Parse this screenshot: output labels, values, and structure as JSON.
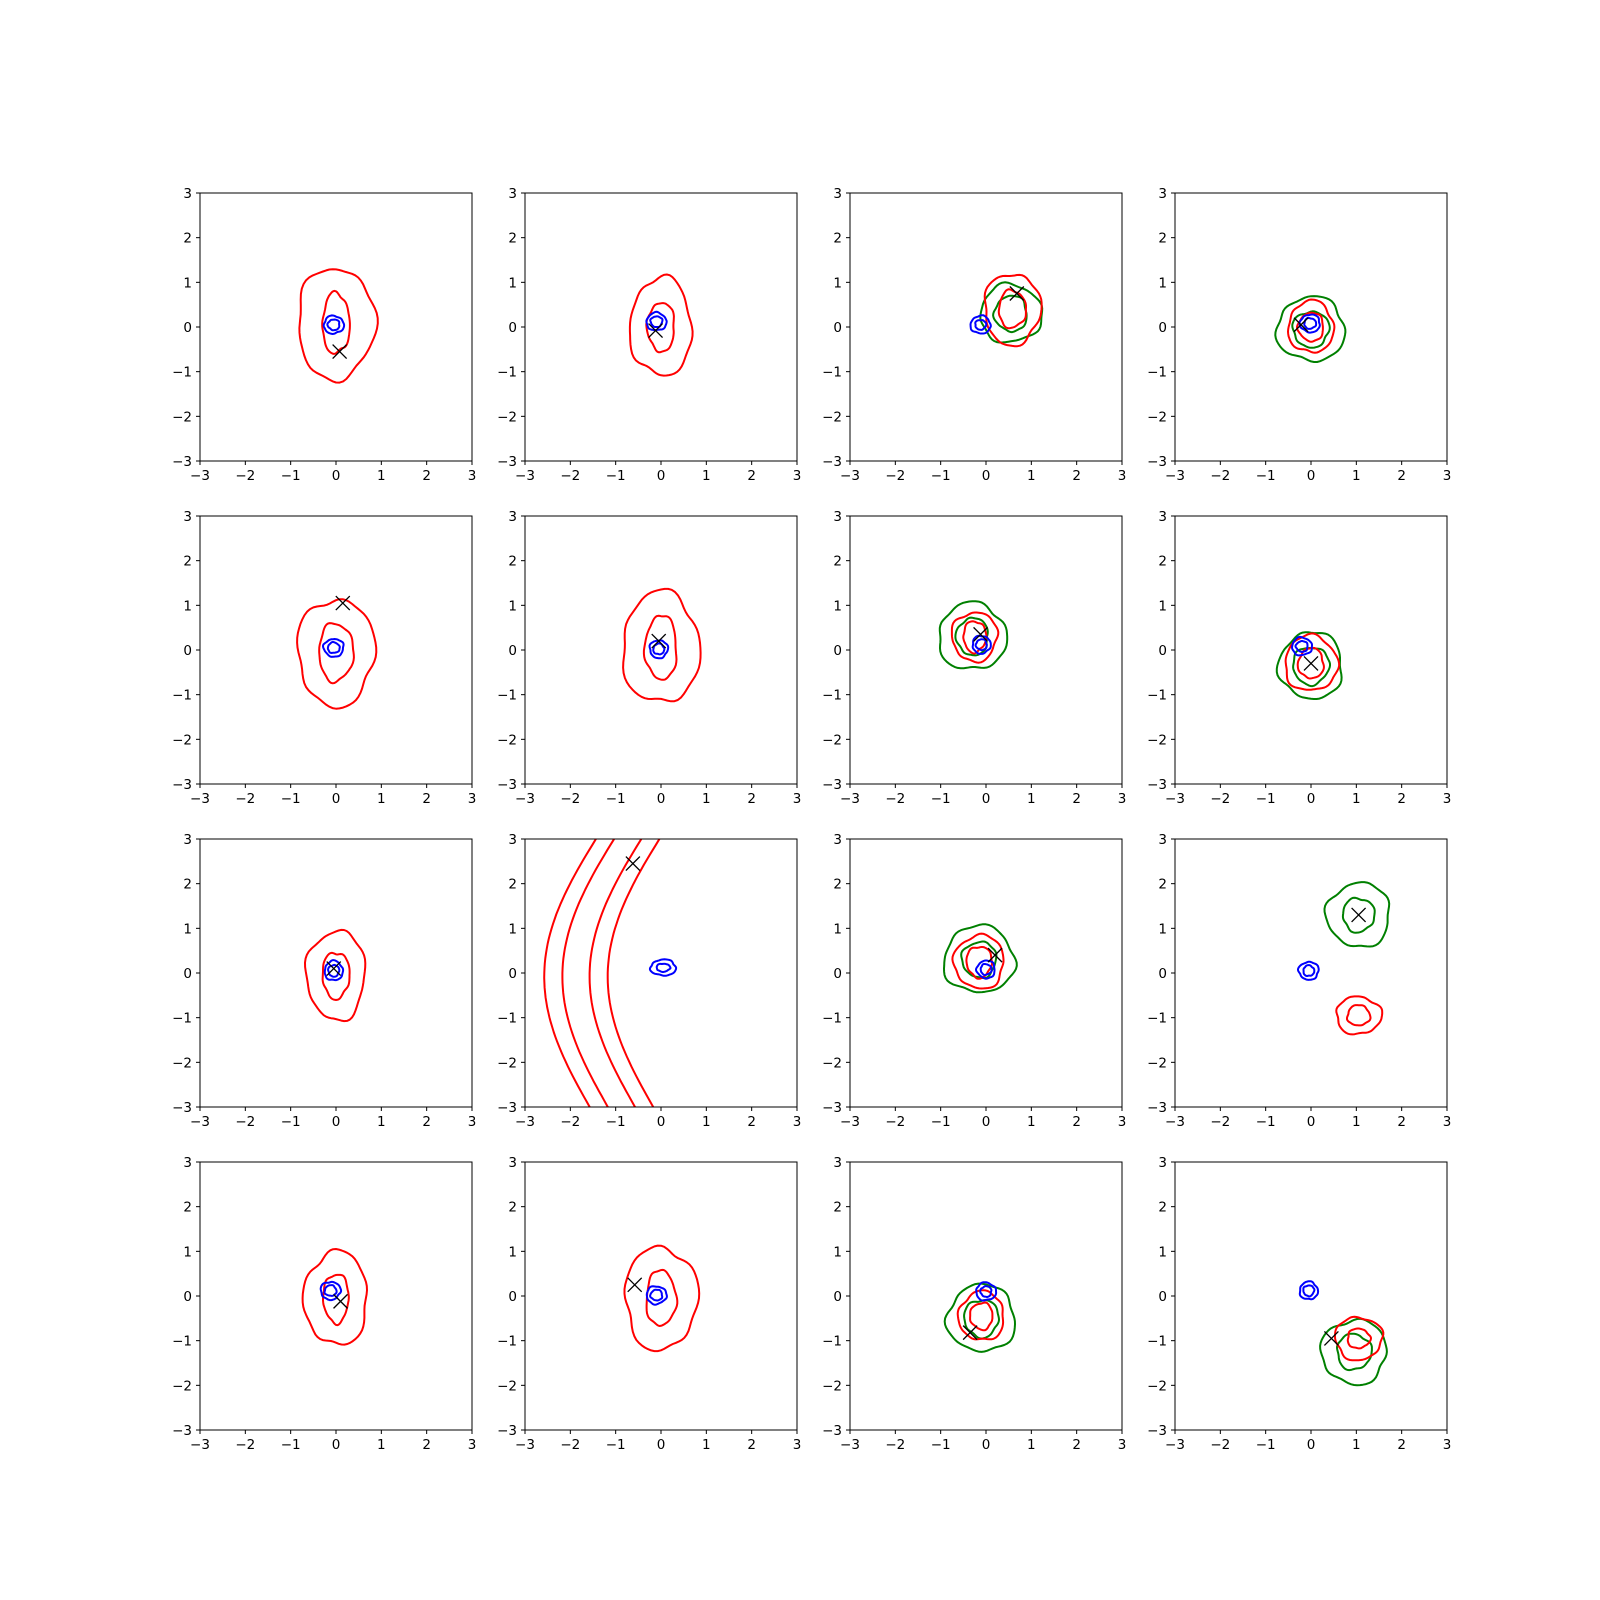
{
  "chart_data": {
    "type": "contour",
    "grid": {
      "rows": 4,
      "cols": 4
    },
    "xlim": [
      -3,
      3
    ],
    "ylim": [
      -3,
      3
    ],
    "ticks": [
      -3,
      -2,
      -1,
      0,
      1,
      2,
      3
    ],
    "tick_labels": [
      "−3",
      "−2",
      "−1",
      "0",
      "1",
      "2",
      "3"
    ],
    "colors": {
      "blue": "#0000ff",
      "red": "#ff0000",
      "green": "#008000",
      "marker": "#000000"
    },
    "panels": [
      {
        "blue": {
          "c": [
            -0.05,
            0.05
          ],
          "r": [
            [
              0.22,
              0.2
            ],
            [
              0.13,
              0.12
            ]
          ]
        },
        "red": {
          "c": [
            0.0,
            0.08
          ],
          "r": [
            [
              0.85,
              1.25
            ],
            [
              0.3,
              0.68
            ]
          ]
        },
        "green": null,
        "marker": [
          0.08,
          -0.55
        ]
      },
      {
        "blue": {
          "c": [
            -0.1,
            0.12
          ],
          "r": [
            [
              0.22,
              0.2
            ],
            [
              0.13,
              0.12
            ]
          ]
        },
        "red": {
          "c": [
            0.0,
            0.0
          ],
          "r": [
            [
              0.68,
              1.1
            ],
            [
              0.3,
              0.55
            ]
          ]
        },
        "green": null,
        "marker": [
          -0.12,
          -0.08
        ]
      },
      {
        "blue": {
          "c": [
            -0.12,
            0.05
          ],
          "r": [
            [
              0.22,
              0.2
            ],
            [
              0.12,
              0.11
            ]
          ]
        },
        "red": {
          "c": [
            0.58,
            0.4
          ],
          "r": [
            [
              0.62,
              0.8
            ],
            [
              0.3,
              0.42
            ]
          ]
        },
        "green": {
          "c": [
            0.55,
            0.3
          ],
          "r": [
            [
              0.68,
              0.65
            ],
            [
              0.36,
              0.4
            ]
          ]
        },
        "marker": [
          0.68,
          0.75
        ]
      },
      {
        "blue": {
          "c": [
            -0.02,
            0.08
          ],
          "r": [
            [
              0.22,
              0.2
            ],
            [
              0.13,
              0.12
            ]
          ]
        },
        "red": {
          "c": [
            0.0,
            0.0
          ],
          "r": [
            [
              0.5,
              0.58
            ],
            [
              0.28,
              0.32
            ]
          ]
        },
        "green": {
          "c": [
            0.0,
            -0.05
          ],
          "r": [
            [
              0.75,
              0.72
            ],
            [
              0.4,
              0.4
            ]
          ]
        },
        "marker": [
          -0.22,
          0.05
        ]
      },
      {
        "blue": {
          "c": [
            -0.05,
            0.05
          ],
          "r": [
            [
              0.22,
              0.2
            ],
            [
              0.13,
              0.12
            ]
          ]
        },
        "red": {
          "c": [
            0.0,
            -0.05
          ],
          "r": [
            [
              0.85,
              1.2
            ],
            [
              0.38,
              0.65
            ]
          ]
        },
        "green": null,
        "marker": [
          0.15,
          1.05
        ]
      },
      {
        "blue": {
          "c": [
            -0.05,
            0.02
          ],
          "r": [
            [
              0.2,
              0.2
            ],
            [
              0.12,
              0.12
            ]
          ]
        },
        "red": {
          "c": [
            0.0,
            0.05
          ],
          "r": [
            [
              0.85,
              1.25
            ],
            [
              0.35,
              0.72
            ]
          ]
        },
        "green": null,
        "marker": [
          -0.05,
          0.2
        ]
      },
      {
        "blue": {
          "c": [
            -0.1,
            0.12
          ],
          "r": [
            [
              0.2,
              0.2
            ],
            [
              0.12,
              0.12
            ]
          ]
        },
        "red": {
          "c": [
            -0.25,
            0.3
          ],
          "r": [
            [
              0.5,
              0.55
            ],
            [
              0.25,
              0.35
            ]
          ]
        },
        "green": {
          "c": [
            -0.3,
            0.3
          ],
          "r": [
            [
              0.75,
              0.75
            ],
            [
              0.35,
              0.42
            ]
          ]
        },
        "marker": [
          -0.12,
          0.35
        ]
      },
      {
        "blue": {
          "c": [
            -0.2,
            0.08
          ],
          "r": [
            [
              0.22,
              0.2
            ],
            [
              0.13,
              0.12
            ]
          ]
        },
        "red": {
          "c": [
            0.0,
            -0.3
          ],
          "r": [
            [
              0.58,
              0.62
            ],
            [
              0.28,
              0.34
            ]
          ]
        },
        "green": {
          "c": [
            0.0,
            -0.35
          ],
          "r": [
            [
              0.7,
              0.75
            ],
            [
              0.4,
              0.42
            ]
          ]
        },
        "marker": [
          0.0,
          -0.3
        ]
      },
      {
        "blue": {
          "c": [
            -0.05,
            0.05
          ],
          "r": [
            [
              0.2,
              0.22
            ],
            [
              0.12,
              0.13
            ]
          ]
        },
        "red": {
          "c": [
            0.0,
            -0.05
          ],
          "r": [
            [
              0.65,
              1.0
            ],
            [
              0.3,
              0.52
            ]
          ]
        },
        "green": null,
        "marker": [
          -0.05,
          0.1
        ]
      },
      {
        "blue": {
          "c": [
            0.05,
            0.12
          ],
          "r": [
            [
              0.28,
              0.18
            ],
            [
              0.15,
              0.09
            ]
          ]
        },
        "red": null,
        "green": null,
        "marker": [
          -0.62,
          2.45
        ]
      },
      {
        "blue": {
          "c": [
            0.0,
            0.08
          ],
          "r": [
            [
              0.2,
              0.2
            ],
            [
              0.12,
              0.12
            ]
          ]
        },
        "red": {
          "c": [
            -0.15,
            0.25
          ],
          "r": [
            [
              0.55,
              0.6
            ],
            [
              0.28,
              0.35
            ]
          ]
        },
        "green": {
          "c": [
            -0.15,
            0.3
          ],
          "r": [
            [
              0.78,
              0.75
            ],
            [
              0.38,
              0.4
            ]
          ]
        },
        "marker": [
          0.2,
          0.4
        ]
      },
      {
        "blue": {
          "c": [
            -0.05,
            0.05
          ],
          "r": [
            [
              0.22,
              0.2
            ],
            [
              0.12,
              0.12
            ]
          ]
        },
        "red": {
          "c": [
            1.05,
            -0.95
          ],
          "r": [
            [
              0.5,
              0.42
            ],
            [
              0.25,
              0.23
            ]
          ]
        },
        "green": {
          "c": [
            1.05,
            1.3
          ],
          "r": [
            [
              0.7,
              0.72
            ],
            [
              0.35,
              0.38
            ]
          ]
        },
        "marker": [
          1.05,
          1.3
        ]
      },
      {
        "blue": {
          "c": [
            -0.12,
            0.12
          ],
          "r": [
            [
              0.22,
              0.2
            ],
            [
              0.13,
              0.12
            ]
          ]
        },
        "red": {
          "c": [
            0.0,
            -0.05
          ],
          "r": [
            [
              0.7,
              1.05
            ],
            [
              0.28,
              0.55
            ]
          ]
        },
        "green": null,
        "marker": [
          0.1,
          -0.12
        ]
      },
      {
        "blue": {
          "c": [
            -0.1,
            0.02
          ],
          "r": [
            [
              0.22,
              0.2
            ],
            [
              0.13,
              0.12
            ]
          ]
        },
        "red": {
          "c": [
            0.0,
            -0.05
          ],
          "r": [
            [
              0.8,
              1.15
            ],
            [
              0.33,
              0.62
            ]
          ]
        },
        "green": null,
        "marker": [
          -0.58,
          0.25
        ]
      },
      {
        "blue": {
          "c": [
            0.0,
            0.1
          ],
          "r": [
            [
              0.22,
              0.2
            ],
            [
              0.12,
              0.12
            ]
          ]
        },
        "red": {
          "c": [
            -0.1,
            -0.45
          ],
          "r": [
            [
              0.5,
              0.55
            ],
            [
              0.25,
              0.3
            ]
          ]
        },
        "green": {
          "c": [
            -0.1,
            -0.5
          ],
          "r": [
            [
              0.75,
              0.75
            ],
            [
              0.38,
              0.42
            ]
          ]
        },
        "marker": [
          -0.35,
          -0.82
        ]
      },
      {
        "blue": {
          "c": [
            -0.05,
            0.12
          ],
          "r": [
            [
              0.2,
              0.2
            ],
            [
              0.12,
              0.12
            ]
          ]
        },
        "red": {
          "c": [
            1.05,
            -0.95
          ],
          "r": [
            [
              0.52,
              0.48
            ],
            [
              0.25,
              0.22
            ]
          ]
        },
        "green": {
          "c": [
            0.95,
            -1.25
          ],
          "r": [
            [
              0.72,
              0.72
            ],
            [
              0.38,
              0.4
            ]
          ]
        },
        "marker": [
          0.45,
          -0.95
        ]
      }
    ]
  }
}
